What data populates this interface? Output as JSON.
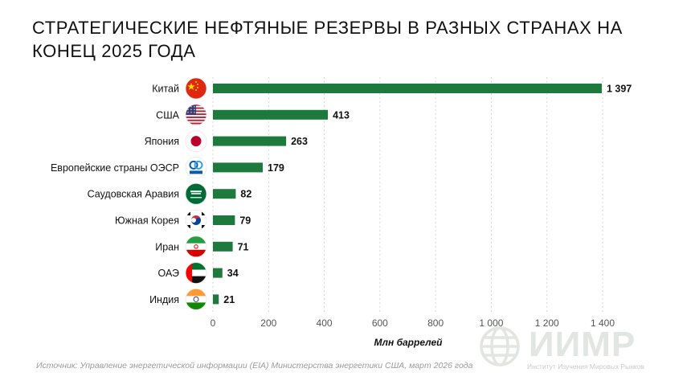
{
  "title": "Стратегические нефтяные резервы в разных странах на конец 2025 года",
  "source": "Источник: Управление энергетической информации (EIA) Министерства энергетики США, март 2026 года",
  "logo": {
    "text": "ИИМР",
    "subtitle": "Институт Изучения Мировых Рынков",
    "icon": "globe-icon"
  },
  "colors": {
    "bar": "#1e7a3c",
    "axis_text": "#555555",
    "grid": "#cccccc",
    "watermark": "#e2e6e2"
  },
  "chart_data": {
    "type": "bar",
    "orientation": "horizontal",
    "categories": [
      "Китай",
      "США",
      "Япония",
      "Европейские страны ОЭСР",
      "Саудовская Аравия",
      "Южная Корея",
      "Иран",
      "ОАЭ",
      "Индия"
    ],
    "values": [
      1397,
      413,
      263,
      179,
      82,
      79,
      71,
      34,
      21
    ],
    "value_labels": [
      "1 397",
      "413",
      "263",
      "179",
      "82",
      "79",
      "71",
      "34",
      "21"
    ],
    "flags": [
      "china-flag-icon",
      "usa-flag-icon",
      "japan-flag-icon",
      "oecd-logo-icon",
      "saudi-arabia-flag-icon",
      "south-korea-flag-icon",
      "iran-flag-icon",
      "uae-flag-icon",
      "india-flag-icon"
    ],
    "xlabel": "Млн баррелей",
    "xlim": [
      0,
      1400
    ],
    "xticks": [
      0,
      200,
      400,
      600,
      800,
      1000,
      1200,
      1400
    ],
    "xtick_labels": [
      "0",
      "200",
      "400",
      "600",
      "800",
      "1 000",
      "1 200",
      "1 400"
    ],
    "grid": true,
    "legend": "none"
  }
}
